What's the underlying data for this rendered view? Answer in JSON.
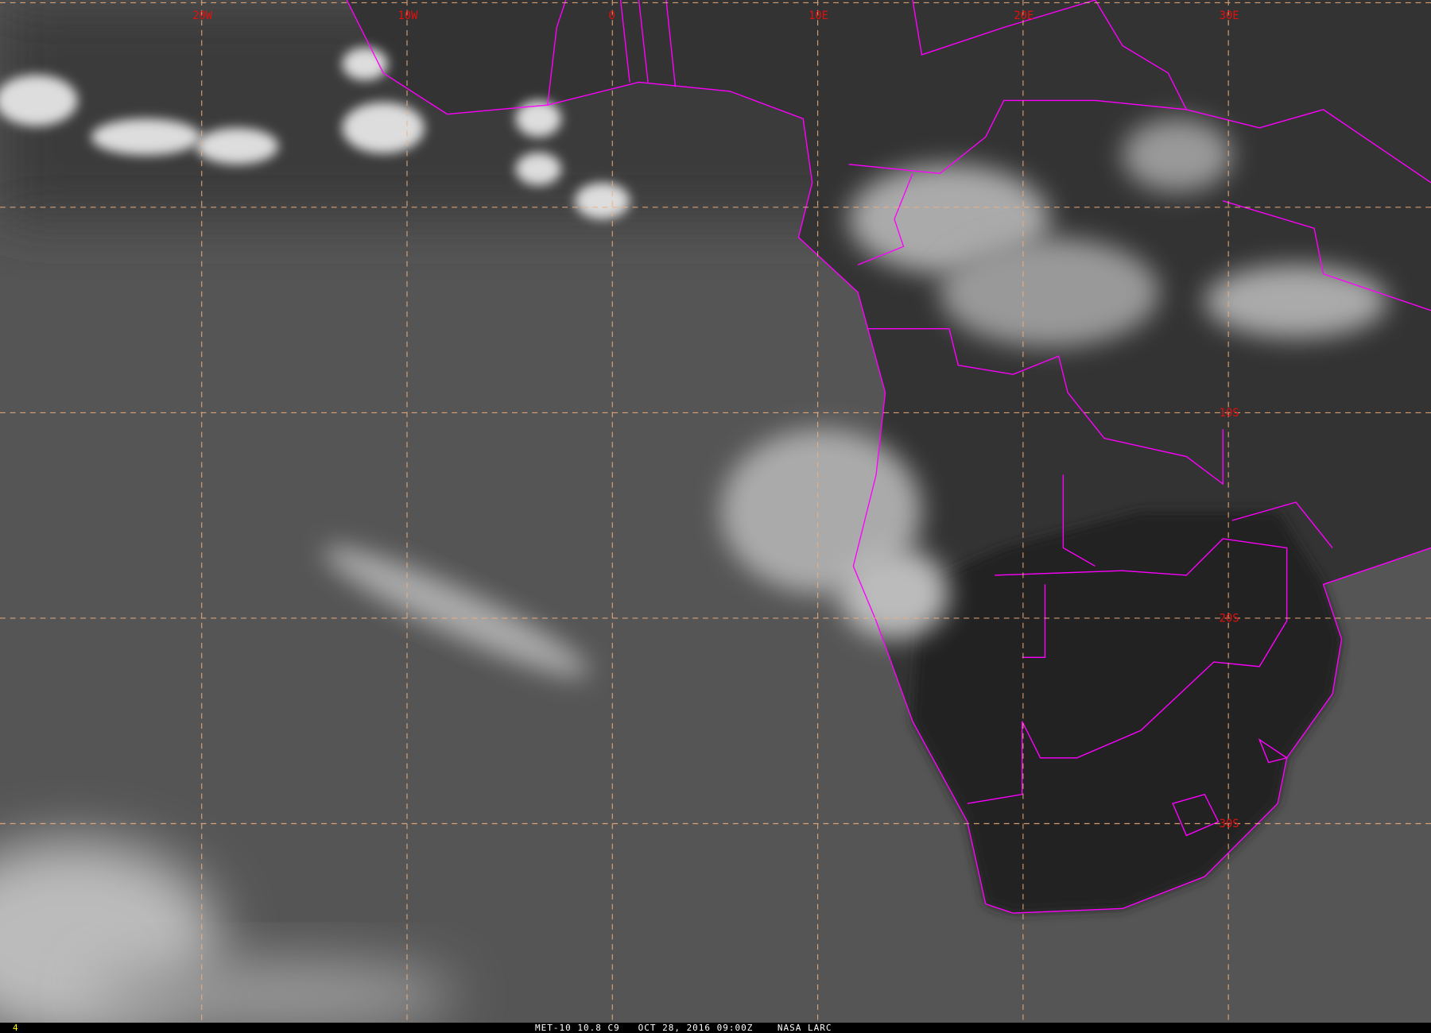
{
  "map": {
    "lon_labels": [
      "20W",
      "10W",
      "0",
      "10E",
      "20E",
      "30E"
    ],
    "lat_labels": [
      "10S",
      "20S",
      "30S"
    ],
    "colors": {
      "grid": "#f0b080",
      "borders": "#ff00ff",
      "labels": "#e01010",
      "footer_text": "#ffffff",
      "frame_number": "#ffff00"
    }
  },
  "footer": {
    "frame_number": "4",
    "caption": "MET-10 10.8 C9   OCT 28, 2016 09:00Z    NASA LARC"
  }
}
